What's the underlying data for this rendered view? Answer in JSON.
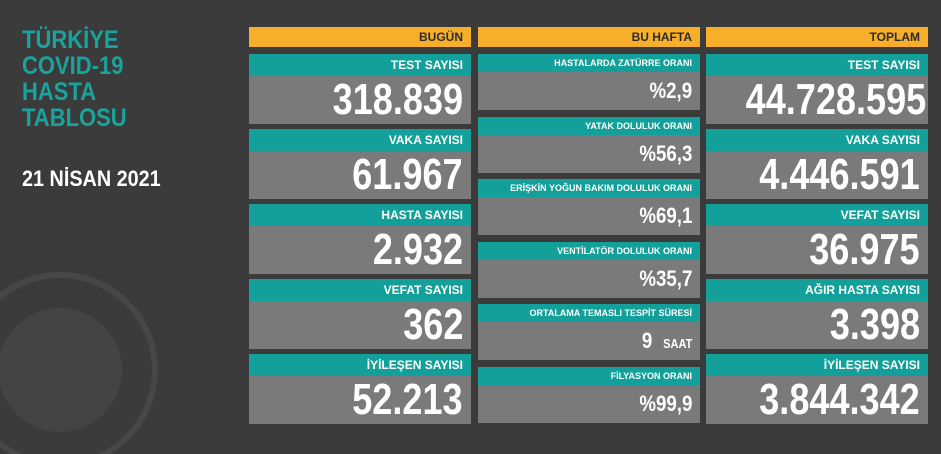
{
  "title_lines": [
    "TÜRKİYE",
    "COVID-19",
    "HASTA",
    "TABLOSU"
  ],
  "date": "21 NİSAN 2021",
  "columns": [
    {
      "header": "BUGÜN",
      "cards": [
        {
          "label": "TEST SAYISI",
          "value": "318.839"
        },
        {
          "label": "VAKA SAYISI",
          "value": "61.967"
        },
        {
          "label": "HASTA SAYISI",
          "value": "2.932"
        },
        {
          "label": "VEFAT SAYISI",
          "value": "362"
        },
        {
          "label": "İYİLEŞEN SAYISI",
          "value": "52.213"
        }
      ]
    },
    {
      "header": "BU HAFTA",
      "cards": [
        {
          "label": "HASTALARDA ZATÜRRE ORANI",
          "value": "%2,9"
        },
        {
          "label": "YATAK DOLULUK ORANI",
          "value": "%56,3"
        },
        {
          "label": "ERİŞKİN YOĞUN BAKIM DOLULUK ORANI",
          "value": "%69,1"
        },
        {
          "label": "VENTİLATÖR DOLULUK ORANI",
          "value": "%35,7"
        },
        {
          "label": "ORTALAMA TEMASLI TESPİT SÜRESİ",
          "value": "9",
          "unit": "SAAT"
        },
        {
          "label": "FİLYASYON ORANI",
          "value": "%99,9"
        }
      ]
    },
    {
      "header": "TOPLAM",
      "cards": [
        {
          "label": "TEST SAYISI",
          "value": "44.728.595"
        },
        {
          "label": "VAKA SAYISI",
          "value": "4.446.591"
        },
        {
          "label": "VEFAT SAYISI",
          "value": "36.975"
        },
        {
          "label": "AĞIR HASTA SAYISI",
          "value": "3.398"
        },
        {
          "label": "İYİLEŞEN SAYISI",
          "value": "3.844.342"
        }
      ]
    }
  ]
}
